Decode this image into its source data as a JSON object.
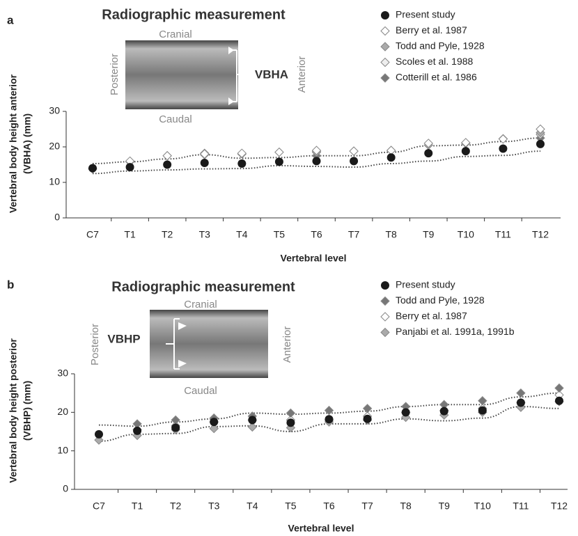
{
  "chart_data": [
    {
      "type": "scatter",
      "panel_label": "a",
      "title": "Radiographic measurement",
      "image_labels": [
        "Cranial",
        "Caudal",
        "Posterior",
        "Anterior",
        "VBHA"
      ],
      "xlabel": "Vertebral level",
      "ylabel": [
        "Vertebral body height anterior",
        "(VBHA) (mm)"
      ],
      "categories": [
        "C7",
        "T1",
        "T2",
        "T3",
        "T4",
        "T5",
        "T6",
        "T7",
        "T8",
        "T9",
        "T10",
        "T11",
        "T12"
      ],
      "ylim": [
        0,
        30
      ],
      "yticks": [
        0,
        10,
        20,
        30
      ],
      "series": [
        {
          "name": "Present study",
          "color": "#1a1a1a",
          "marker": "circle",
          "values": [
            14,
            14.3,
            15,
            15.5,
            15.3,
            15.8,
            16,
            16,
            17,
            18.2,
            18.8,
            19.5,
            20.8
          ]
        },
        {
          "name": "Berry et al. 1987",
          "color": "#ffffff",
          "marker": "diamond",
          "values": [
            null,
            16,
            17.5,
            18,
            18.2,
            18.5,
            19,
            18.8,
            19,
            21,
            21.2,
            22.2,
            25
          ]
        },
        {
          "name": "Todd and Pyle, 1928",
          "color": "#aaaaaa",
          "marker": "diamond",
          "values": [
            null,
            15.8,
            17.5,
            17.8,
            18,
            18.5,
            18.5,
            18.8,
            19,
            20.5,
            21,
            22.3,
            24
          ]
        },
        {
          "name": "Scoles et al. 1988",
          "color": "#eeeeee",
          "marker": "diamond",
          "values": [
            null,
            null,
            null,
            18.2,
            null,
            null,
            18.8,
            null,
            null,
            null,
            null,
            null,
            23.5
          ]
        },
        {
          "name": "Cotterill et al. 1986",
          "color": "#777777",
          "marker": "diamond",
          "values": [
            13.8,
            null,
            null,
            null,
            null,
            null,
            17.5,
            null,
            null,
            null,
            null,
            null,
            22.5
          ]
        }
      ],
      "envelope": {
        "upper": [
          15.3,
          15.8,
          16.6,
          17.8,
          16.8,
          17,
          17.5,
          17.5,
          18.5,
          20.3,
          20.5,
          21.5,
          22.5
        ],
        "lower": [
          12.5,
          13.2,
          13.5,
          13.8,
          13.9,
          14.7,
          14.5,
          14.3,
          15.3,
          16,
          17.3,
          17.6,
          18.8
        ]
      }
    },
    {
      "type": "scatter",
      "panel_label": "b",
      "title": "Radiographic measurement",
      "image_labels": [
        "Cranial",
        "Caudal",
        "Posterior",
        "Anterior",
        "VBHP"
      ],
      "xlabel": "Vertebral level",
      "ylabel": [
        "Vertebral body height posterior",
        "(VBHP) (mm)"
      ],
      "categories": [
        "C7",
        "T1",
        "T2",
        "T3",
        "T4",
        "T5",
        "T6",
        "T7",
        "T8",
        "T9",
        "T10",
        "T11",
        "T12"
      ],
      "ylim": [
        0,
        30
      ],
      "yticks": [
        0,
        10,
        20,
        30
      ],
      "series": [
        {
          "name": "Present study",
          "color": "#1a1a1a",
          "marker": "circle",
          "values": [
            14.3,
            15.2,
            16,
            17.5,
            18,
            17.3,
            18.2,
            18.3,
            20,
            20.3,
            20.5,
            22.5,
            23
          ]
        },
        {
          "name": "Todd and Pyle, 1928",
          "color": "#777777",
          "marker": "diamond",
          "values": [
            null,
            17,
            18,
            18.5,
            19,
            19.8,
            20.5,
            21,
            21.5,
            22,
            23,
            25,
            26.3
          ]
        },
        {
          "name": "Berry et al. 1987",
          "color": "#ffffff",
          "marker": "diamond",
          "values": [
            null,
            15.5,
            16.5,
            17.5,
            18,
            18,
            18,
            19,
            20,
            20.5,
            21,
            22.5,
            24.5
          ]
        },
        {
          "name": "Panjabi et al. 1991a, 1991b",
          "color": "#aaaaaa",
          "marker": "diamond",
          "values": [
            12.8,
            14,
            15.5,
            15.8,
            16.2,
            16,
            17.5,
            18,
            18.7,
            19.3,
            20,
            21.3,
            22.8
          ]
        }
      ],
      "envelope": {
        "upper": [
          16.7,
          16.4,
          17.5,
          18.3,
          19.8,
          19.5,
          19.8,
          20.3,
          21.5,
          22,
          22,
          24,
          25
        ],
        "lower": [
          12.5,
          14.3,
          14.5,
          16.3,
          16.5,
          15,
          17,
          17,
          18.3,
          17.8,
          18.5,
          21.5,
          21
        ]
      }
    }
  ]
}
